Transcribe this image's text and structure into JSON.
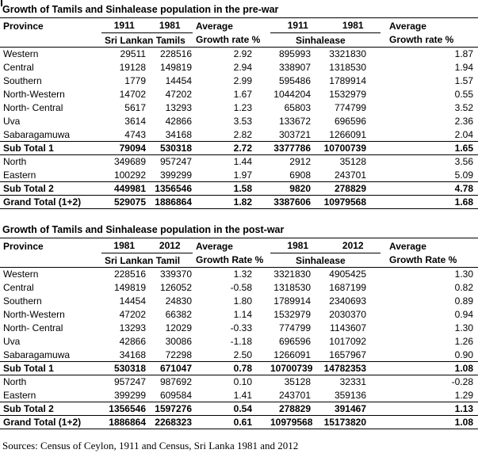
{
  "page": {
    "footer": "Sources: Census of Ceylon, 1911 and Census, Sri Lanka 1981 and 2012"
  },
  "tables": [
    {
      "title": "Growth of Tamils and Sinhalease population in the pre-war",
      "header": {
        "province": "Province",
        "tamil_year1": "1911",
        "tamil_year2": "1981",
        "avg1": "Average",
        "tamil_group": "Sri Lankan Tamils",
        "rate1": "Growth rate %",
        "sinhala_year1": "1911",
        "sinhala_year2": "1981",
        "avg2": "Average",
        "sinhala_group": "Sinhalease",
        "rate2": "Growth rate %"
      },
      "rows": [
        {
          "label": "Western",
          "style": "normal",
          "values": [
            "29511",
            "228516",
            "2.92",
            "895993",
            "3321830",
            "1.87"
          ]
        },
        {
          "label": "Central",
          "style": "normal",
          "values": [
            "19128",
            "149819",
            "2.94",
            "338907",
            "1318530",
            "1.94"
          ]
        },
        {
          "label": "Southern",
          "style": "normal",
          "values": [
            "1779",
            "14454",
            "2.99",
            "595486",
            "1789914",
            "1.57"
          ]
        },
        {
          "label": "North-Western",
          "style": "normal",
          "values": [
            "14702",
            "47202",
            "1.67",
            "1044204",
            "1532979",
            "0.55"
          ]
        },
        {
          "label": "North- Central",
          "style": "normal",
          "values": [
            "5617",
            "13293",
            "1.23",
            "65803",
            "774799",
            "3.52"
          ]
        },
        {
          "label": "Uva",
          "style": "normal",
          "values": [
            "3614",
            "42866",
            "3.53",
            "133672",
            "696596",
            "2.36"
          ]
        },
        {
          "label": "Sabaragamuwa",
          "style": "normal",
          "values": [
            "4743",
            "34168",
            "2.82",
            "303721",
            "1266091",
            "2.04"
          ]
        },
        {
          "label": "Sub Total 1",
          "style": "subtotal",
          "values": [
            "79094",
            "530318",
            "2.72",
            "3377786",
            "10700739",
            "1.65"
          ]
        },
        {
          "label": "North",
          "style": "normal",
          "values": [
            "349689",
            "957247",
            "1.44",
            "2912",
            "35128",
            "3.56"
          ]
        },
        {
          "label": "Eastern",
          "style": "normal",
          "values": [
            "100292",
            "399299",
            "1.97",
            "6908",
            "243701",
            "5.09"
          ]
        },
        {
          "label": "Sub Total 2",
          "style": "subtotal",
          "values": [
            "449981",
            "1356546",
            "1.58",
            "9820",
            "278829",
            "4.78"
          ]
        },
        {
          "label": "Grand Total (1+2)",
          "style": "grandtotal",
          "values": [
            "529075",
            "1886864",
            "1.82",
            "3387606",
            "10979568",
            "1.68"
          ]
        }
      ]
    },
    {
      "title": "Growth of Tamils and Sinhalease population in the post-war",
      "header": {
        "province": "Province",
        "tamil_year1": "1981",
        "tamil_year2": "2012",
        "avg1": "Average",
        "tamil_group": "Sri Lankan Tamil",
        "rate1": "Growth Rate %",
        "sinhala_year1": "1981",
        "sinhala_year2": "2012",
        "avg2": "Average",
        "sinhala_group": "Sinhalease",
        "rate2": "Growth Rate %"
      },
      "rows": [
        {
          "label": "Western",
          "style": "normal",
          "values": [
            "228516",
            "339370",
            "1.32",
            "3321830",
            "4905425",
            "1.30"
          ]
        },
        {
          "label": "Central",
          "style": "normal",
          "values": [
            "149819",
            "126052",
            "-0.58",
            "1318530",
            "1687199",
            "0.82"
          ]
        },
        {
          "label": "Southern",
          "style": "normal",
          "values": [
            "14454",
            "24830",
            "1.80",
            "1789914",
            "2340693",
            "0.89"
          ]
        },
        {
          "label": "North-Western",
          "style": "normal",
          "values": [
            "47202",
            "66382",
            "1.14",
            "1532979",
            "2030370",
            "0.94"
          ]
        },
        {
          "label": "North- Central",
          "style": "normal",
          "values": [
            "13293",
            "12029",
            "-0.33",
            "774799",
            "1143607",
            "1.30"
          ]
        },
        {
          "label": "Uva",
          "style": "normal",
          "values": [
            "42866",
            "30086",
            "-1.18",
            "696596",
            "1017092",
            "1.26"
          ]
        },
        {
          "label": "Sabaragamuwa",
          "style": "normal",
          "values": [
            "34168",
            "72298",
            "2.50",
            "1266091",
            "1657967",
            "0.90"
          ]
        },
        {
          "label": "Sub Total 1",
          "style": "subtotal",
          "values": [
            "530318",
            "671047",
            "0.78",
            "10700739",
            "14782353",
            "1.08"
          ]
        },
        {
          "label": "North",
          "style": "normal",
          "values": [
            "957247",
            "987692",
            "0.10",
            "35128",
            "32331",
            "-0.28"
          ]
        },
        {
          "label": "Eastern",
          "style": "normal",
          "values": [
            "399299",
            "609584",
            "1.41",
            "243701",
            "359136",
            "1.29"
          ]
        },
        {
          "label": "Sub Total 2",
          "style": "subtotal",
          "values": [
            "1356546",
            "1597276",
            "0.54",
            "278829",
            "391467",
            "1.13"
          ]
        },
        {
          "label": "Grand Total (1+2)",
          "style": "grandtotal",
          "values": [
            "1886864",
            "2268323",
            "0.61",
            "10979568",
            "15173820",
            "1.08"
          ]
        }
      ]
    }
  ]
}
